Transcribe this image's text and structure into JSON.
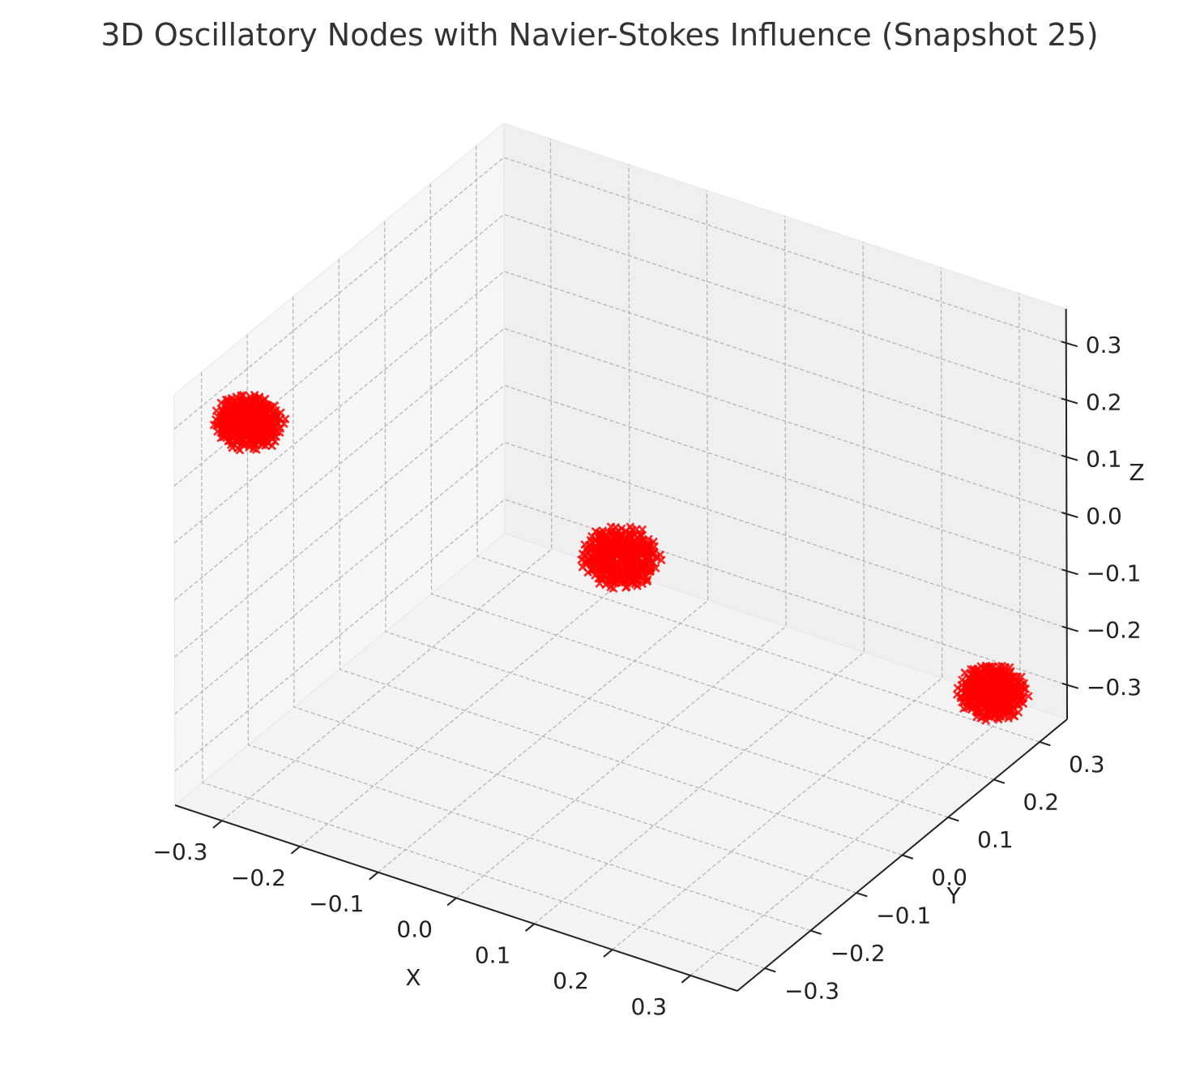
{
  "chart_data": {
    "type": "scatter",
    "projection": "3d",
    "title": "3D Oscillatory Nodes with Navier-Stokes Influence (Snapshot 25)",
    "xlabel": "X",
    "ylabel": "Y",
    "zlabel": "Z",
    "xlim": [
      -0.36,
      0.36
    ],
    "ylim": [
      -0.36,
      0.36
    ],
    "zlim": [
      -0.36,
      0.36
    ],
    "grid": true,
    "marker": "x",
    "marker_color": "#ff0000",
    "pane_colors": {
      "left": "#f6f6f6",
      "back": "#efefef",
      "floor": "#f3f3f3"
    },
    "x_ticks": [
      {
        "value": -0.3,
        "label": "−0.3"
      },
      {
        "value": -0.2,
        "label": "−0.2"
      },
      {
        "value": -0.1,
        "label": "−0.1"
      },
      {
        "value": 0.0,
        "label": "0.0"
      },
      {
        "value": 0.1,
        "label": "0.1"
      },
      {
        "value": 0.2,
        "label": "0.2"
      },
      {
        "value": 0.3,
        "label": "0.3"
      }
    ],
    "y_ticks": [
      {
        "value": -0.3,
        "label": "−0.3"
      },
      {
        "value": -0.2,
        "label": "−0.2"
      },
      {
        "value": -0.1,
        "label": "−0.1"
      },
      {
        "value": 0.0,
        "label": "0.0"
      },
      {
        "value": 0.1,
        "label": "0.1"
      },
      {
        "value": 0.2,
        "label": "0.2"
      },
      {
        "value": 0.3,
        "label": "0.3"
      }
    ],
    "z_ticks": [
      {
        "value": -0.3,
        "label": "−0.3"
      },
      {
        "value": -0.2,
        "label": "−0.2"
      },
      {
        "value": -0.1,
        "label": "−0.1"
      },
      {
        "value": 0.0,
        "label": "0.0"
      },
      {
        "value": 0.1,
        "label": "0.1"
      },
      {
        "value": 0.2,
        "label": "0.2"
      },
      {
        "value": 0.3,
        "label": "0.3"
      }
    ],
    "clusters": [
      {
        "center": [
          -0.3,
          -0.3,
          0.3
        ],
        "radius": 0.04
      },
      {
        "center": [
          0.0,
          0.0,
          0.0
        ],
        "radius": 0.045
      },
      {
        "center": [
          0.3,
          0.3,
          -0.3
        ],
        "radius": 0.04
      }
    ]
  }
}
